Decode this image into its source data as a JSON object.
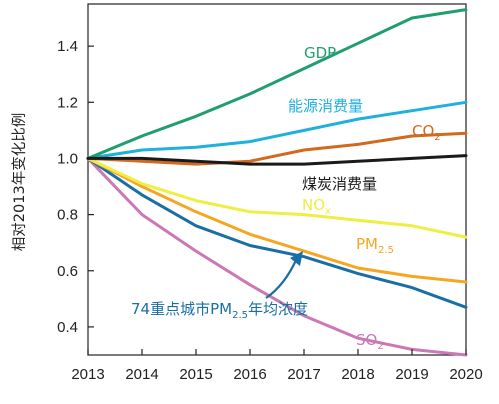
{
  "chart_data": {
    "type": "line",
    "title": "",
    "xlabel": "",
    "ylabel": "相对2013年变化比例",
    "x": [
      2013,
      2014,
      2015,
      2016,
      2017,
      2018,
      2019,
      2020
    ],
    "xlim": [
      2013,
      2020
    ],
    "ylim": [
      0.3,
      1.55
    ],
    "yticks": [
      0.4,
      0.6,
      0.8,
      1.0,
      1.2,
      1.4
    ],
    "ytick_labels": [
      "0.4",
      "0.6",
      "0.8",
      "1.0",
      "1.2",
      "1.4"
    ],
    "xtick_labels": [
      "2013",
      "2014",
      "2015",
      "2016",
      "2017",
      "2018",
      "2019",
      "2020"
    ],
    "grid": false,
    "legend": "inline labels",
    "series": [
      {
        "key": "gdp",
        "name": "GDP",
        "sub": "",
        "color": "#1f9e6e",
        "values": [
          1.0,
          1.08,
          1.15,
          1.23,
          1.32,
          1.41,
          1.5,
          1.53
        ]
      },
      {
        "key": "energy",
        "name": "能源消费量",
        "sub": "",
        "color": "#1fb0dc",
        "values": [
          1.0,
          1.03,
          1.04,
          1.06,
          1.1,
          1.14,
          1.17,
          1.2
        ]
      },
      {
        "key": "co2",
        "name": "CO",
        "sub": "2",
        "color": "#d2691e",
        "values": [
          1.0,
          0.99,
          0.98,
          0.99,
          1.03,
          1.05,
          1.08,
          1.09
        ]
      },
      {
        "key": "coal",
        "name": "煤炭消费量",
        "sub": "",
        "color": "#1a1a1a",
        "values": [
          1.0,
          1.0,
          0.99,
          0.98,
          0.98,
          0.99,
          1.0,
          1.01
        ]
      },
      {
        "key": "nox",
        "name": "NO",
        "sub": "x",
        "color": "#eeee44",
        "values": [
          1.0,
          0.91,
          0.85,
          0.81,
          0.8,
          0.78,
          0.76,
          0.72
        ]
      },
      {
        "key": "pm25",
        "name": "PM",
        "sub": "2.5",
        "color": "#f5a623",
        "values": [
          1.0,
          0.9,
          0.81,
          0.73,
          0.67,
          0.61,
          0.58,
          0.56
        ]
      },
      {
        "key": "pm25city",
        "name": "74重点城市PM",
        "sub": "2.5",
        "suffix": "年均浓度",
        "color": "#1a6ea6",
        "values": [
          1.0,
          0.87,
          0.76,
          0.69,
          0.65,
          0.59,
          0.54,
          0.47
        ]
      },
      {
        "key": "so2",
        "name": "SO",
        "sub": "2",
        "color": "#cc78b4",
        "values": [
          1.0,
          0.8,
          0.67,
          0.55,
          0.44,
          0.36,
          0.32,
          0.3
        ]
      }
    ]
  }
}
